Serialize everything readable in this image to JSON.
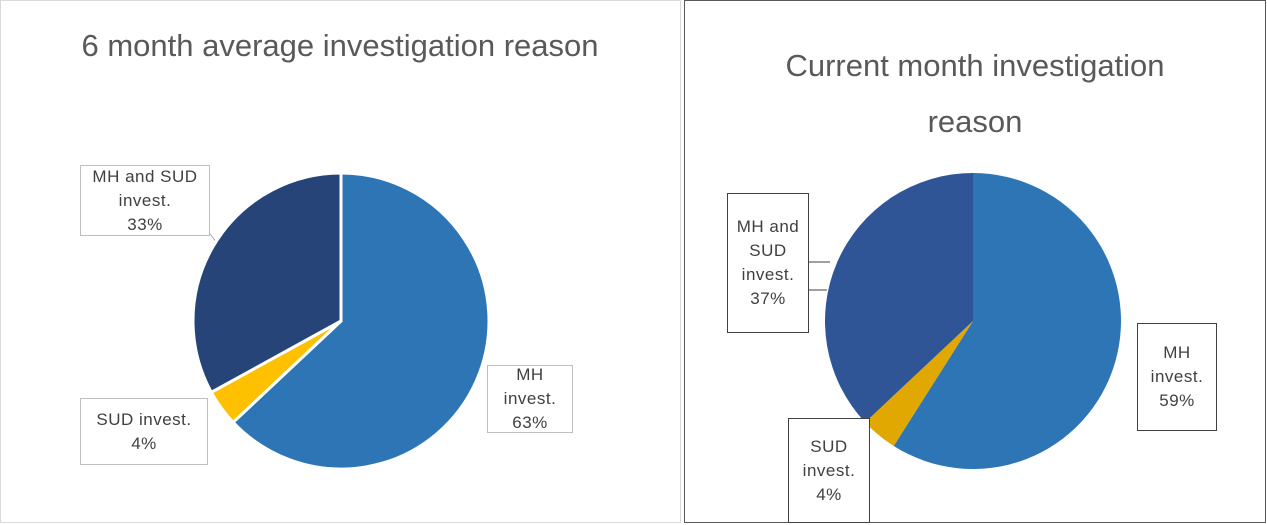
{
  "chart_data": [
    {
      "type": "pie",
      "title": "6 month average investigation reason",
      "categories": [
        "MH invest.",
        "SUD invest.",
        "MH and SUD invest."
      ],
      "values": [
        63,
        4,
        33
      ],
      "value_labels": [
        "63%",
        "4%",
        "33%"
      ],
      "colors": [
        "#2e75b6",
        "#ffc000",
        "#264478"
      ]
    },
    {
      "type": "pie",
      "title": "Current month investigation reason",
      "categories": [
        "MH invest.",
        "SUD invest.",
        "MH and SUD invest."
      ],
      "values": [
        59,
        4,
        37
      ],
      "value_labels": [
        "59%",
        "4%",
        "37%"
      ],
      "colors": [
        "#2e75b6",
        "#e0a800",
        "#2f5597"
      ]
    }
  ]
}
